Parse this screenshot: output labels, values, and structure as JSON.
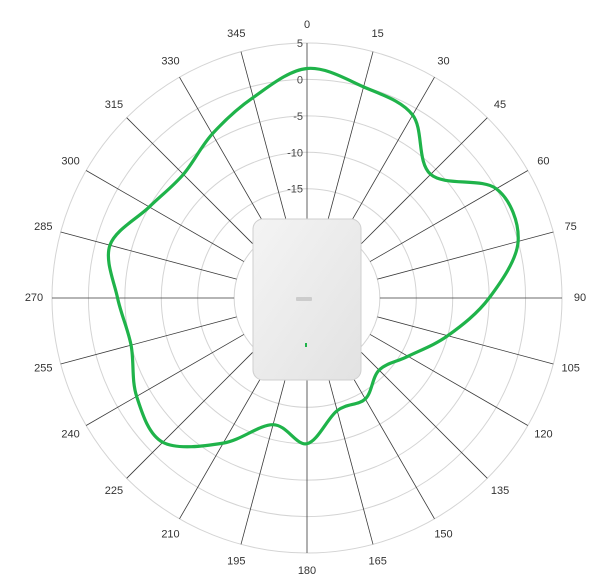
{
  "chart_data": {
    "type": "polar-line",
    "angle_labels": [
      "0",
      "15",
      "30",
      "45",
      "60",
      "75",
      "90",
      "105",
      "120",
      "135",
      "150",
      "165",
      "180",
      "195",
      "210",
      "225",
      "240",
      "255",
      "270",
      "285",
      "300",
      "315",
      "330",
      "345"
    ],
    "radial_labels": [
      "5",
      "0",
      "-5",
      "-10",
      "-15"
    ],
    "rlim": [
      -30,
      5
    ],
    "series": [
      {
        "color": "#1fb34a",
        "angles": [
          0,
          15,
          30,
          45,
          60,
          75,
          90,
          105,
          120,
          135,
          150,
          165,
          180,
          195,
          210,
          225,
          240,
          255,
          270,
          285,
          300,
          315,
          330,
          345
        ],
        "values": [
          1.5,
          0,
          -1,
          -6,
          0,
          0,
          -5,
          -10,
          -14,
          -16,
          -14,
          -14,
          -10,
          -12,
          -7,
          -2,
          -3,
          -5,
          -4,
          -2,
          -5,
          -6,
          -4,
          -1.5
        ]
      }
    ]
  },
  "device": {
    "color": "#ececec",
    "led_color": "#1fb34a"
  },
  "colors": {
    "grid_ring": "#d4d4d4",
    "grid_spoke": "#3a3a3a"
  }
}
